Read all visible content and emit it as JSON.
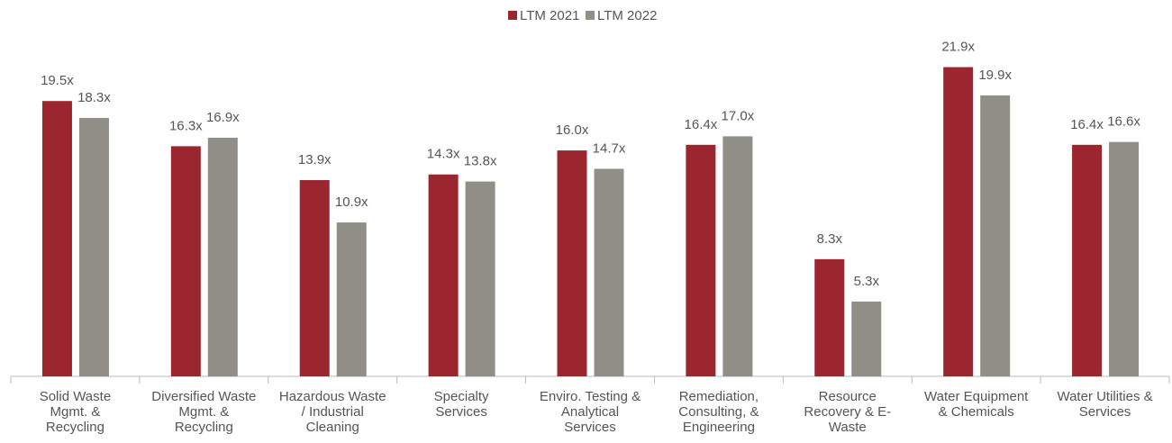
{
  "chart_data": {
    "type": "bar",
    "categories": [
      [
        "Solid Waste",
        "Mgmt. &",
        "Recycling"
      ],
      [
        "Diversified Waste",
        "Mgmt. &",
        "Recycling"
      ],
      [
        "Hazardous Waste",
        "/ Industrial",
        "Cleaning"
      ],
      [
        "Specialty",
        "Services"
      ],
      [
        "Enviro. Testing &",
        "Analytical",
        "Services"
      ],
      [
        "Remediation,",
        "Consulting, &",
        "Engineering"
      ],
      [
        "Resource",
        "Recovery & E-",
        "Waste"
      ],
      [
        "Water Equipment",
        "& Chemicals"
      ],
      [
        "Water Utilities &",
        "Services"
      ]
    ],
    "series": [
      {
        "name": "LTM 2021",
        "color": "#9b2630",
        "values": [
          19.5,
          16.3,
          13.9,
          14.3,
          16.0,
          16.4,
          8.3,
          21.9,
          16.4
        ],
        "value_labels": [
          "19.5x",
          "16.3x",
          "13.9x",
          "14.3x",
          "16.0x",
          "16.4x",
          "8.3x",
          "21.9x",
          "16.4x"
        ]
      },
      {
        "name": "LTM 2022",
        "color": "#8f8f87",
        "values": [
          18.3,
          16.9,
          10.9,
          13.8,
          14.7,
          17.0,
          5.3,
          19.9,
          16.6
        ],
        "value_labels": [
          "18.3x",
          "16.9x",
          "10.9x",
          "13.8x",
          "14.7x",
          "17.0x",
          "5.3x",
          "19.9x",
          "16.6x"
        ]
      }
    ],
    "ylim": [
      0,
      22
    ],
    "legend": "top"
  }
}
